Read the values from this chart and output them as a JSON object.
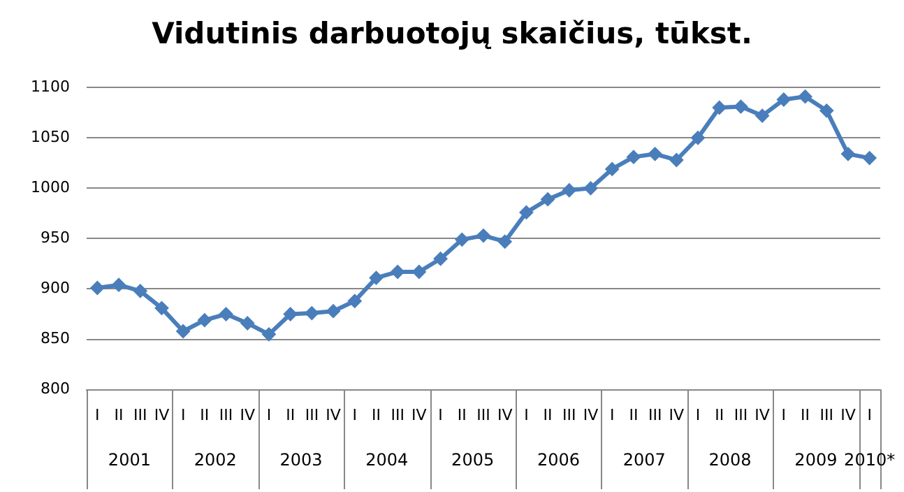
{
  "chart_data": {
    "type": "line",
    "title": "Vidutinis darbuotojų skaičius, tūkst.",
    "categories": [
      "I",
      "II",
      "III",
      "IV",
      "I",
      "II",
      "III",
      "IV",
      "I",
      "II",
      "III",
      "IV",
      "I",
      "II",
      "III",
      "IV",
      "I",
      "II",
      "III",
      "IV",
      "I",
      "II",
      "III",
      "IV",
      "I",
      "II",
      "III",
      "IV",
      "I",
      "II",
      "III",
      "IV",
      "I",
      "II",
      "III",
      "IV",
      "I"
    ],
    "series": [
      {
        "color": "#4a7ebb",
        "values": [
          901,
          904,
          898,
          881,
          858,
          869,
          875,
          866,
          855,
          875,
          876,
          878,
          888,
          911,
          917,
          917,
          930,
          949,
          953,
          947,
          976,
          989,
          998,
          1000,
          1019,
          1031,
          1034,
          1028,
          1050,
          1080,
          1081,
          1072,
          1088,
          1091,
          1077,
          1034,
          1030
        ]
      }
    ],
    "annotations": [
      "2001",
      "2002",
      "2003",
      "2004",
      "2005",
      "2006",
      "2007",
      "2008",
      "2009",
      "2010*"
    ],
    "ylim": [
      800,
      1100
    ],
    "yticks": [
      800,
      850,
      900,
      950,
      1000,
      1050,
      1100
    ],
    "grid": "y",
    "legend": false,
    "marker": "diamond",
    "line_style": "solid"
  }
}
